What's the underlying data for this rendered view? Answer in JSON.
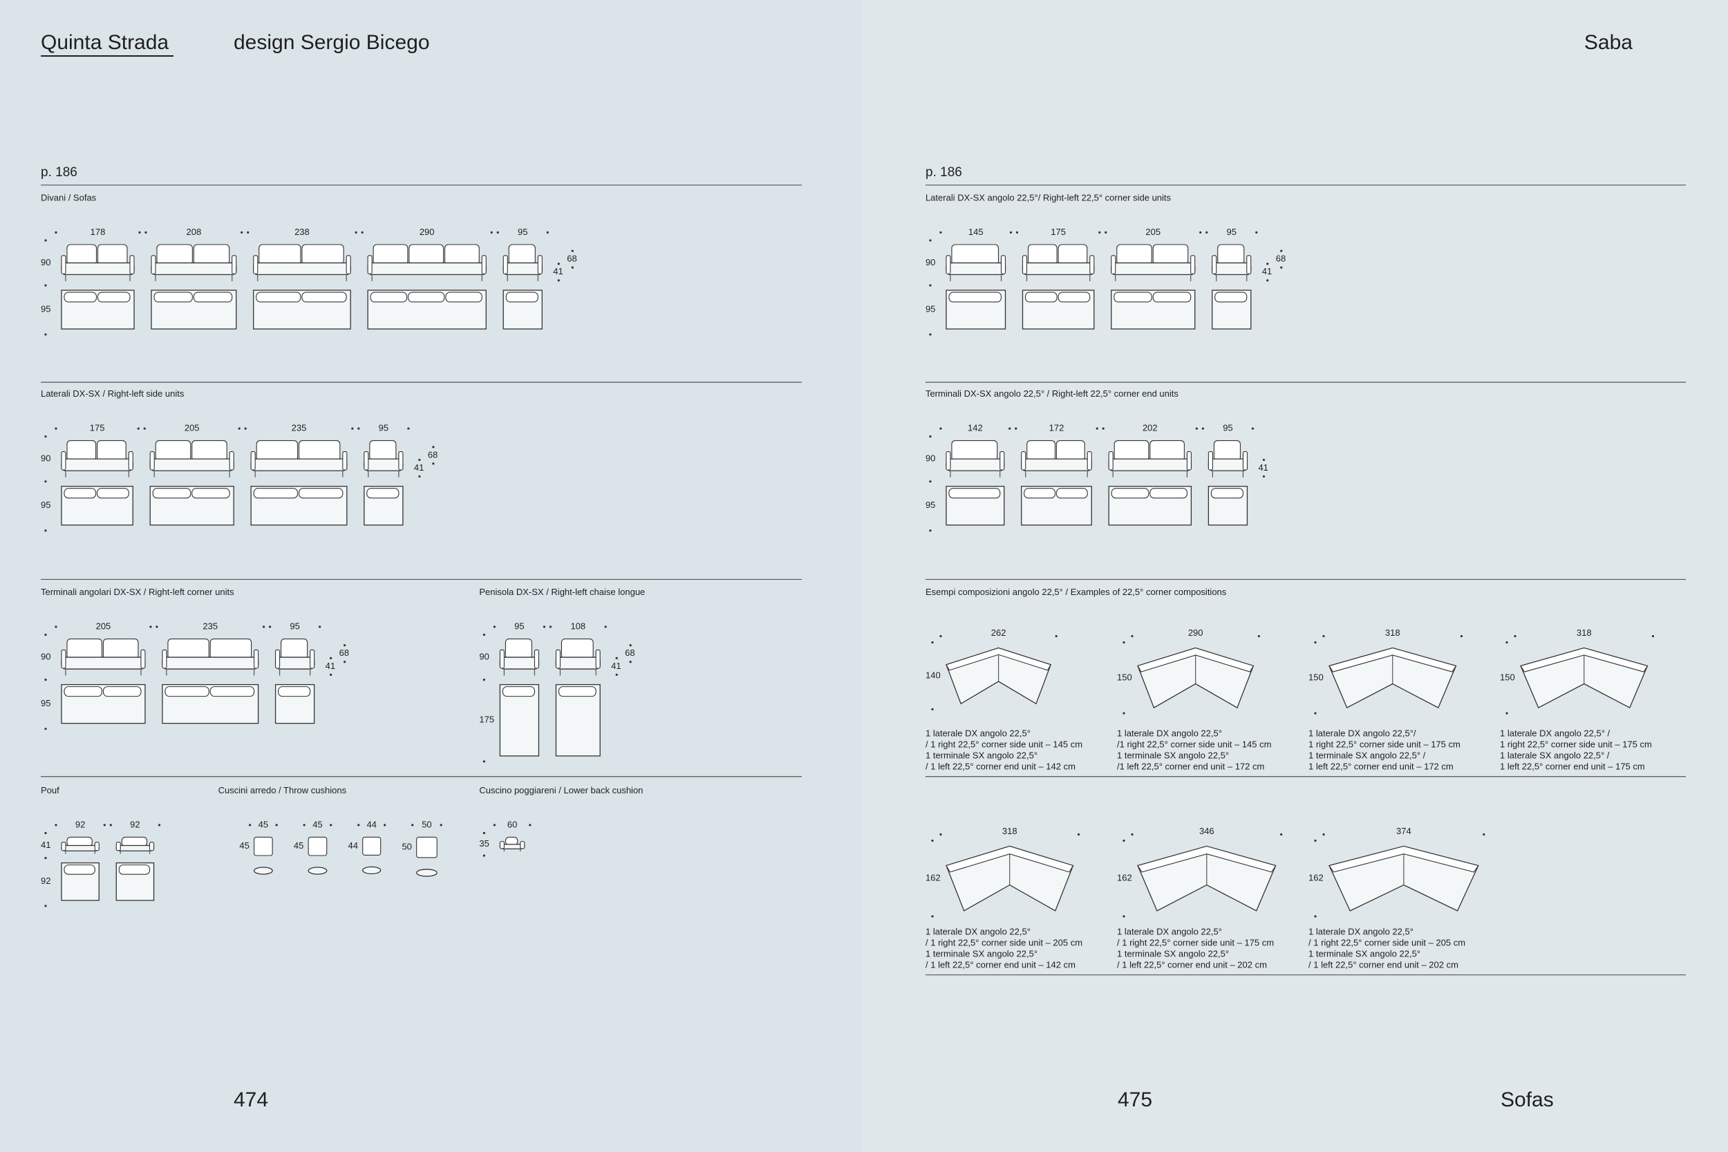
{
  "header": {
    "collection": "Quinta Strada",
    "designer": "design Sergio Bicego",
    "brand": "Saba"
  },
  "footer": {
    "page_left": "474",
    "page_right": "475",
    "category": "Sofas"
  },
  "left": {
    "page_ref": "p. 186",
    "sections": [
      {
        "title": "Divani / Sofas",
        "h": [
          "90",
          "95"
        ],
        "items": [
          {
            "w": "178"
          },
          {
            "w": "208"
          },
          {
            "w": "238"
          },
          {
            "w": "290"
          },
          {
            "w": "95",
            "extra": [
              "41",
              "68"
            ]
          }
        ]
      },
      {
        "title": "Laterali DX-SX / Right-left side units",
        "h": [
          "90",
          "95"
        ],
        "items": [
          {
            "w": "175"
          },
          {
            "w": "205"
          },
          {
            "w": "235"
          },
          {
            "w": "95",
            "extra": [
              "41",
              "68"
            ]
          }
        ]
      },
      {
        "title": "Terminali angolari DX-SX / Right-left corner units",
        "h": [
          "90",
          "95"
        ],
        "items": [
          {
            "w": "205"
          },
          {
            "w": "235"
          },
          {
            "w": "95",
            "extra": [
              "41",
              "68"
            ]
          }
        ]
      },
      {
        "title": "Penisola DX-SX / Right-left chaise longue",
        "h": [
          "90",
          "175"
        ],
        "items": [
          {
            "w": "95"
          },
          {
            "w": "108",
            "extra": [
              "41",
              "68"
            ]
          }
        ]
      },
      {
        "title": "Pouf",
        "h": [
          "41",
          "92"
        ],
        "items": [
          {
            "w": "92"
          },
          {
            "w": "92"
          }
        ]
      },
      {
        "title": "Cuscini arredo / Throw cushions",
        "items": [
          {
            "w": "45",
            "h": "45"
          },
          {
            "w": "45",
            "h": "45"
          },
          {
            "w": "44",
            "h": "44"
          },
          {
            "w": "50",
            "h": "50"
          }
        ]
      },
      {
        "title": "Cuscino poggiareni / Lower back cushion",
        "h": [
          "35"
        ],
        "items": [
          {
            "w": "60"
          }
        ]
      }
    ]
  },
  "right": {
    "page_ref": "p. 186",
    "sections": [
      {
        "title": "Laterali DX-SX angolo 22,5°/ Right-left 22,5° corner side units",
        "h": [
          "90",
          "95"
        ],
        "items": [
          {
            "w": "145"
          },
          {
            "w": "175"
          },
          {
            "w": "205"
          },
          {
            "w": "95",
            "extra": [
              "41",
              "68"
            ]
          }
        ]
      },
      {
        "title": "Terminali DX-SX angolo 22,5° / Right-left 22,5° corner end units",
        "h": [
          "90",
          "95"
        ],
        "items": [
          {
            "w": "142"
          },
          {
            "w": "172"
          },
          {
            "w": "202"
          },
          {
            "w": "95",
            "extra": [
              "41"
            ]
          }
        ]
      }
    ],
    "examples": {
      "title": "Esempi composizioni angolo 22,5° / Examples of 22,5° corner compositions",
      "items": [
        {
          "w": "262",
          "h": "140",
          "caption": [
            "1 laterale DX angolo 22,5°",
            "/ 1 right 22,5° corner side unit – 145 cm",
            "1 terminale SX angolo 22,5°",
            "/ 1 left 22,5° corner end unit – 142 cm"
          ]
        },
        {
          "w": "290",
          "h": "150",
          "caption": [
            "1 laterale DX angolo 22,5°",
            "/1 right 22,5° corner side unit – 145 cm",
            "1 terminale SX angolo 22,5°",
            "/1 left 22,5° corner end unit – 172 cm"
          ]
        },
        {
          "w": "318",
          "h": "150",
          "caption": [
            "1 laterale DX angolo 22,5°/",
            "1 right 22,5° corner side unit – 175 cm",
            "1 terminale SX angolo 22,5° /",
            "1 left 22,5° corner end unit – 172 cm"
          ]
        },
        {
          "w": "318",
          "h": "150",
          "caption": [
            "1 laterale DX angolo 22,5° /",
            "1 right 22,5° corner side unit – 175 cm",
            "1 laterale SX angolo 22,5° /",
            "1 left 22,5° corner end unit – 175 cm"
          ]
        },
        {
          "w": "318",
          "h": "162",
          "caption": [
            "1 laterale DX angolo 22,5°",
            "/ 1 right 22,5° corner side unit – 205 cm",
            "1 terminale SX angolo 22,5°",
            "/ 1 left 22,5° corner end unit – 142 cm"
          ]
        },
        {
          "w": "346",
          "h": "162",
          "caption": [
            "1 laterale DX angolo 22,5°",
            "/ 1 right 22,5° corner side unit – 175 cm",
            "1 terminale SX angolo 22,5°",
            "/ 1 left 22,5° corner end unit – 202 cm"
          ]
        },
        {
          "w": "374",
          "h": "162",
          "caption": [
            "1 laterale DX angolo 22,5°",
            "/ 1 right 22,5° corner side unit – 205 cm",
            "1 terminale SX angolo 22,5°",
            "/ 1 left 22,5° corner end unit – 202 cm"
          ]
        }
      ]
    }
  }
}
